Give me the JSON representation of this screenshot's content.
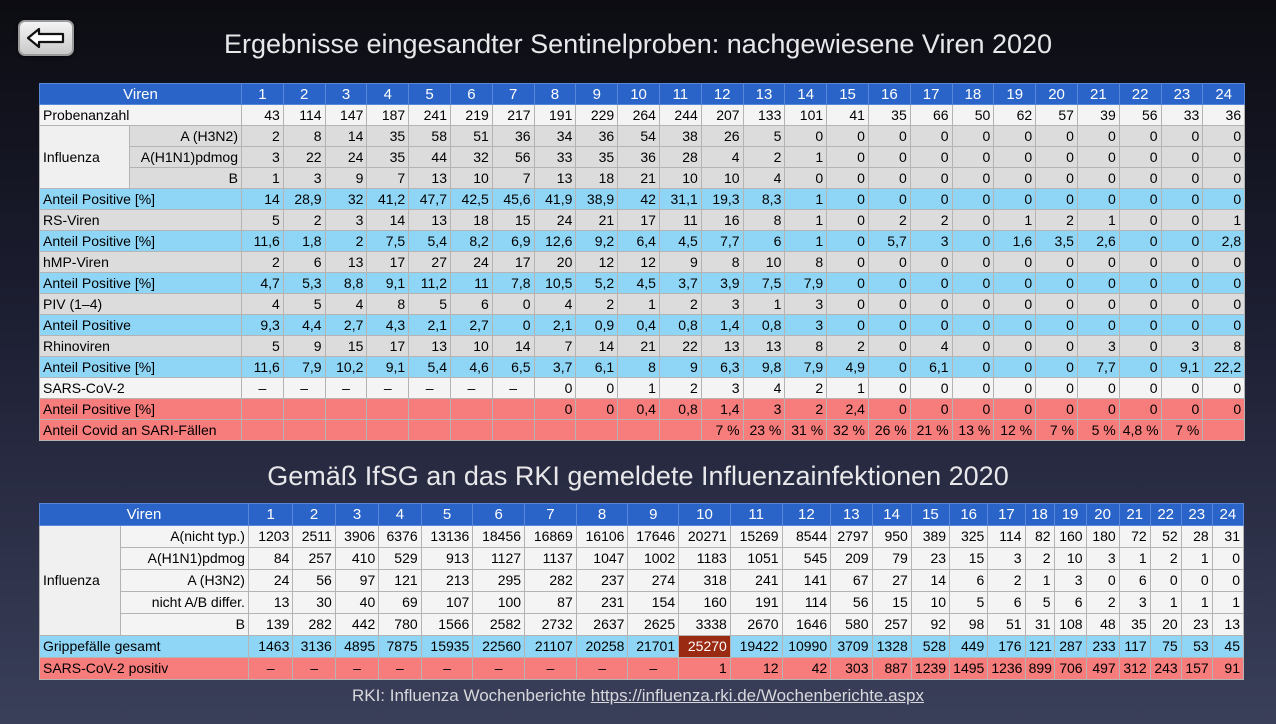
{
  "title1": "Ergebnisse eingesandter Sentinelproben: nachgewiesene Viren 2020",
  "title2": "Gemäß IfSG an das RKI gemeldete Influenzainfektionen 2020",
  "footer_text": "RKI: Influenza Wochenberichte",
  "footer_link": "https://influenza.rki.de/Wochenberichte.aspx",
  "back_icon": "arrow-left-icon",
  "colors": {
    "header": "#2a64c8",
    "positive_row": "#8fd6f6",
    "covid_row": "#f77c7c",
    "highlight": "#9a2a12"
  },
  "table1": {
    "header": {
      "label": "Viren",
      "weeks": [
        "1",
        "2",
        "3",
        "4",
        "5",
        "6",
        "7",
        "8",
        "9",
        "10",
        "11",
        "12",
        "13",
        "14",
        "15",
        "16",
        "17",
        "18",
        "19",
        "20",
        "21",
        "22",
        "23",
        "24"
      ]
    },
    "rows": [
      {
        "label": "Probenanzahl",
        "sub": "",
        "style": "w",
        "values": [
          "43",
          "114",
          "147",
          "187",
          "241",
          "219",
          "217",
          "191",
          "229",
          "264",
          "244",
          "207",
          "133",
          "101",
          "41",
          "35",
          "66",
          "50",
          "62",
          "57",
          "39",
          "56",
          "33",
          "36"
        ]
      },
      {
        "label": "Influenza",
        "sub": "A (H3N2)",
        "style": "g",
        "values": [
          "2",
          "8",
          "14",
          "35",
          "58",
          "51",
          "36",
          "34",
          "36",
          "54",
          "38",
          "26",
          "5",
          "0",
          "0",
          "0",
          "0",
          "0",
          "0",
          "0",
          "0",
          "0",
          "0",
          "0"
        ]
      },
      {
        "label": "",
        "sub": "A(H1N1)pdmog",
        "style": "g",
        "values": [
          "3",
          "22",
          "24",
          "35",
          "44",
          "32",
          "56",
          "33",
          "35",
          "36",
          "28",
          "4",
          "2",
          "1",
          "0",
          "0",
          "0",
          "0",
          "0",
          "0",
          "0",
          "0",
          "0",
          "0"
        ]
      },
      {
        "label": "",
        "sub": "B",
        "style": "g",
        "values": [
          "1",
          "3",
          "9",
          "7",
          "13",
          "10",
          "7",
          "13",
          "18",
          "21",
          "10",
          "10",
          "4",
          "0",
          "0",
          "0",
          "0",
          "0",
          "0",
          "0",
          "0",
          "0",
          "0",
          "0"
        ]
      },
      {
        "label": "Anteil Positive [%]",
        "sub": "",
        "style": "b",
        "values": [
          "14",
          "28,9",
          "32",
          "41,2",
          "47,7",
          "42,5",
          "45,6",
          "41,9",
          "38,9",
          "42",
          "31,1",
          "19,3",
          "8,3",
          "1",
          "0",
          "0",
          "0",
          "0",
          "0",
          "0",
          "0",
          "0",
          "0",
          "0"
        ]
      },
      {
        "label": "RS-Viren",
        "sub": "",
        "style": "g",
        "values": [
          "5",
          "2",
          "3",
          "14",
          "13",
          "18",
          "15",
          "24",
          "21",
          "17",
          "11",
          "16",
          "8",
          "1",
          "0",
          "2",
          "2",
          "0",
          "1",
          "2",
          "1",
          "0",
          "0",
          "1"
        ]
      },
      {
        "label": "Anteil Positive [%]",
        "sub": "",
        "style": "b",
        "values": [
          "11,6",
          "1,8",
          "2",
          "7,5",
          "5,4",
          "8,2",
          "6,9",
          "12,6",
          "9,2",
          "6,4",
          "4,5",
          "7,7",
          "6",
          "1",
          "0",
          "5,7",
          "3",
          "0",
          "1,6",
          "3,5",
          "2,6",
          "0",
          "0",
          "2,8"
        ]
      },
      {
        "label": "hMP-Viren",
        "sub": "",
        "style": "g",
        "values": [
          "2",
          "6",
          "13",
          "17",
          "27",
          "24",
          "17",
          "20",
          "12",
          "12",
          "9",
          "8",
          "10",
          "8",
          "0",
          "0",
          "0",
          "0",
          "0",
          "0",
          "0",
          "0",
          "0",
          "0"
        ]
      },
      {
        "label": "Anteil Positive [%]",
        "sub": "",
        "style": "b",
        "values": [
          "4,7",
          "5,3",
          "8,8",
          "9,1",
          "11,2",
          "11",
          "7,8",
          "10,5",
          "5,2",
          "4,5",
          "3,7",
          "3,9",
          "7,5",
          "7,9",
          "0",
          "0",
          "0",
          "0",
          "0",
          "0",
          "0",
          "0",
          "0",
          "0"
        ]
      },
      {
        "label": "PIV (1–4)",
        "sub": "",
        "style": "g",
        "values": [
          "4",
          "5",
          "4",
          "8",
          "5",
          "6",
          "0",
          "4",
          "2",
          "1",
          "2",
          "3",
          "1",
          "3",
          "0",
          "0",
          "0",
          "0",
          "0",
          "0",
          "0",
          "0",
          "0",
          "0"
        ]
      },
      {
        "label": "Anteil Positive",
        "sub": "",
        "style": "b",
        "values": [
          "9,3",
          "4,4",
          "2,7",
          "4,3",
          "2,1",
          "2,7",
          "0",
          "2,1",
          "0,9",
          "0,4",
          "0,8",
          "1,4",
          "0,8",
          "3",
          "0",
          "0",
          "0",
          "0",
          "0",
          "0",
          "0",
          "0",
          "0",
          "0"
        ]
      },
      {
        "label": "Rhinoviren",
        "sub": "",
        "style": "g",
        "values": [
          "5",
          "9",
          "15",
          "17",
          "13",
          "10",
          "14",
          "7",
          "14",
          "21",
          "22",
          "13",
          "13",
          "8",
          "2",
          "0",
          "4",
          "0",
          "0",
          "0",
          "3",
          "0",
          "3",
          "8"
        ]
      },
      {
        "label": "Anteil Positive [%]",
        "sub": "",
        "style": "b",
        "values": [
          "11,6",
          "7,9",
          "10,2",
          "9,1",
          "5,4",
          "4,6",
          "6,5",
          "3,7",
          "6,1",
          "8",
          "9",
          "6,3",
          "9,8",
          "7,9",
          "4,9",
          "0",
          "6,1",
          "0",
          "0",
          "0",
          "7,7",
          "0",
          "9,1",
          "22,2"
        ]
      },
      {
        "label": "SARS-CoV-2",
        "sub": "",
        "style": "w",
        "values": [
          "–",
          "–",
          "–",
          "–",
          "–",
          "–",
          "–",
          "0",
          "0",
          "1",
          "2",
          "3",
          "4",
          "2",
          "1",
          "0",
          "0",
          "0",
          "0",
          "0",
          "0",
          "0",
          "0",
          "0"
        ]
      },
      {
        "label": "Anteil Positive [%]",
        "sub": "",
        "style": "r",
        "values": [
          "",
          "",
          "",
          "",
          "",
          "",
          "",
          "0",
          "0",
          "0,4",
          "0,8",
          "1,4",
          "3",
          "2",
          "2,4",
          "0",
          "0",
          "0",
          "0",
          "0",
          "0",
          "0",
          "0",
          "0"
        ]
      },
      {
        "label": "Anteil Covid an SARI-Fällen",
        "sub": "",
        "style": "r",
        "values": [
          "",
          "",
          "",
          "",
          "",
          "",
          "",
          "",
          "",
          "",
          "",
          "7 %",
          "23 %",
          "31 %",
          "32 %",
          "26 %",
          "21 %",
          "13 %",
          "12 %",
          "7 %",
          "5 %",
          "4,8 %",
          "7 %",
          ""
        ]
      }
    ]
  },
  "table2": {
    "header": {
      "label": "Viren",
      "weeks": [
        "1",
        "2",
        "3",
        "4",
        "5",
        "6",
        "7",
        "8",
        "9",
        "10",
        "11",
        "12",
        "13",
        "14",
        "15",
        "16",
        "17",
        "18",
        "19",
        "20",
        "21",
        "22",
        "23",
        "24"
      ]
    },
    "rows": [
      {
        "label": "Influenza",
        "sub": "A(nicht typ.)",
        "style": "w",
        "values": [
          "1203",
          "2511",
          "3906",
          "6376",
          "13136",
          "18456",
          "16869",
          "16106",
          "17646",
          "20271",
          "15269",
          "8544",
          "2797",
          "950",
          "389",
          "325",
          "114",
          "82",
          "160",
          "180",
          "72",
          "52",
          "28",
          "31"
        ]
      },
      {
        "label": "",
        "sub": "A(H1N1)pdmog",
        "style": "w",
        "values": [
          "84",
          "257",
          "410",
          "529",
          "913",
          "1127",
          "1137",
          "1047",
          "1002",
          "1183",
          "1051",
          "545",
          "209",
          "79",
          "23",
          "15",
          "3",
          "2",
          "10",
          "3",
          "1",
          "2",
          "1",
          "0"
        ]
      },
      {
        "label": "",
        "sub": "A (H3N2)",
        "style": "w",
        "values": [
          "24",
          "56",
          "97",
          "121",
          "213",
          "295",
          "282",
          "237",
          "274",
          "318",
          "241",
          "141",
          "67",
          "27",
          "14",
          "6",
          "2",
          "1",
          "3",
          "0",
          "6",
          "0",
          "0",
          "0"
        ]
      },
      {
        "label": "",
        "sub": "nicht A/B differ.",
        "style": "w",
        "values": [
          "13",
          "30",
          "40",
          "69",
          "107",
          "100",
          "87",
          "231",
          "154",
          "160",
          "191",
          "114",
          "56",
          "15",
          "10",
          "5",
          "6",
          "5",
          "6",
          "2",
          "3",
          "1",
          "1",
          "1"
        ]
      },
      {
        "label": "",
        "sub": "B",
        "style": "w",
        "values": [
          "139",
          "282",
          "442",
          "780",
          "1566",
          "2582",
          "2732",
          "2637",
          "2625",
          "3338",
          "2670",
          "1646",
          "580",
          "257",
          "92",
          "98",
          "51",
          "31",
          "108",
          "48",
          "35",
          "20",
          "23",
          "13"
        ]
      },
      {
        "label": "Grippefälle gesamt",
        "sub": "",
        "style": "b",
        "values": [
          "1463",
          "3136",
          "4895",
          "7875",
          "15935",
          "22560",
          "21107",
          "20258",
          "21701",
          "25270",
          "19422",
          "10990",
          "3709",
          "1328",
          "528",
          "449",
          "176",
          "121",
          "287",
          "233",
          "117",
          "75",
          "53",
          "45"
        ]
      },
      {
        "label": "SARS-CoV-2 positiv",
        "sub": "",
        "style": "r",
        "values": [
          "–",
          "–",
          "–",
          "–",
          "–",
          "–",
          "–",
          "–",
          "–",
          "1",
          "12",
          "42",
          "303",
          "887",
          "1239",
          "1495",
          "1236",
          "899",
          "706",
          "497",
          "312",
          "243",
          "157",
          "91"
        ]
      }
    ]
  }
}
